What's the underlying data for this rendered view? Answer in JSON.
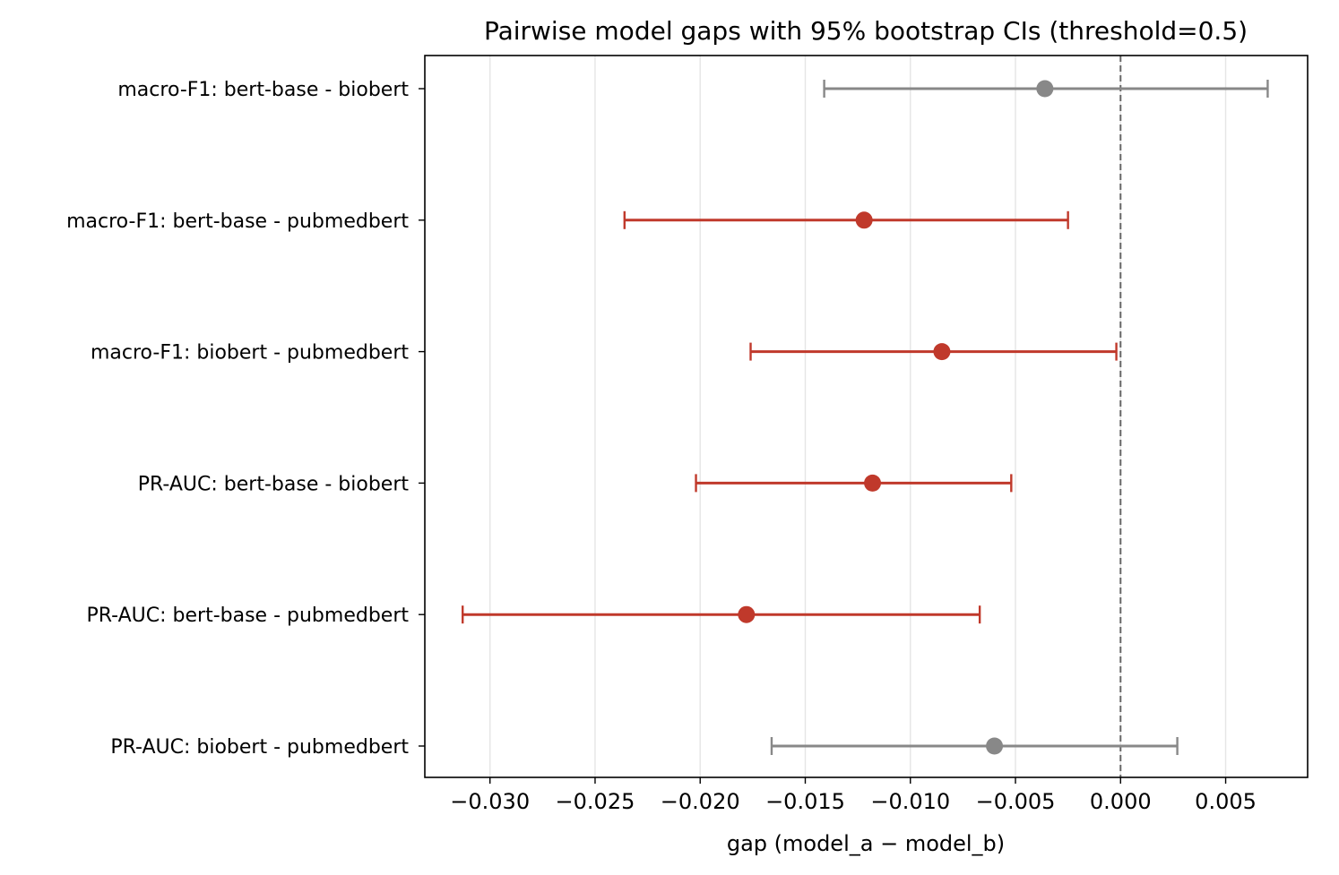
{
  "chart_data": {
    "type": "forest",
    "title": "Pairwise model gaps with 95% bootstrap CIs (threshold=0.5)",
    "xlabel": "gap (model_a − model_b)",
    "ylabel": "",
    "xlim": [
      -0.0331,
      0.0089
    ],
    "xticks": [
      -0.03,
      -0.025,
      -0.02,
      -0.015,
      -0.01,
      -0.005,
      0.0,
      0.005
    ],
    "xtick_labels": [
      "−0.030",
      "−0.025",
      "−0.020",
      "−0.015",
      "−0.010",
      "−0.005",
      "0.000",
      "0.005"
    ],
    "reference_line": 0.0,
    "grid": "x-only",
    "colors": {
      "significant": "#c0392b",
      "not_significant": "#888888",
      "grid": "#e5e5e5",
      "reference": "#666666"
    },
    "rows": [
      {
        "label": "macro-F1: bert-base - biobert",
        "gap": -0.0036,
        "ci_low": -0.0141,
        "ci_high": 0.007,
        "significant": false
      },
      {
        "label": "macro-F1: bert-base - pubmedbert",
        "gap": -0.0122,
        "ci_low": -0.0236,
        "ci_high": -0.0025,
        "significant": true
      },
      {
        "label": "macro-F1: biobert - pubmedbert",
        "gap": -0.0085,
        "ci_low": -0.0176,
        "ci_high": -0.0002,
        "significant": true
      },
      {
        "label": "PR-AUC: bert-base - biobert",
        "gap": -0.0118,
        "ci_low": -0.0202,
        "ci_high": -0.0052,
        "significant": true
      },
      {
        "label": "PR-AUC: bert-base - pubmedbert",
        "gap": -0.0178,
        "ci_low": -0.0313,
        "ci_high": -0.0067,
        "significant": true
      },
      {
        "label": "PR-AUC: biobert - pubmedbert",
        "gap": -0.006,
        "ci_low": -0.0166,
        "ci_high": 0.0027,
        "significant": false
      }
    ]
  }
}
